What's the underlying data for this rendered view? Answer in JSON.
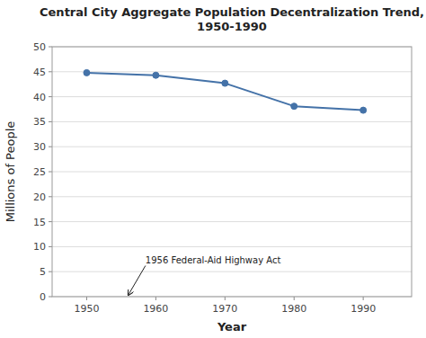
{
  "chart_data": {
    "type": "line",
    "title": "Central City Aggregate Population Decentralization Trend,\n1950-1990",
    "xlabel": "Year",
    "ylabel": "Millions of People",
    "x": [
      1950,
      1960,
      1970,
      1980,
      1990
    ],
    "values": [
      44.8,
      44.3,
      42.7,
      38.1,
      37.3
    ],
    "color": "#4472A8",
    "marker": "circle",
    "xlim": [
      1945,
      1997
    ],
    "ylim": [
      0,
      50
    ],
    "xticks": [
      1950,
      1960,
      1970,
      1980,
      1990
    ],
    "yticks": [
      0,
      5,
      10,
      15,
      20,
      25,
      30,
      35,
      40,
      45,
      50
    ],
    "grid": "y",
    "annotations": [
      {
        "text": "1956 Federal-Aid Highway Act",
        "x": 1956,
        "y": 0.3,
        "text_x": 1958.5,
        "text_y": 6.2
      }
    ]
  }
}
